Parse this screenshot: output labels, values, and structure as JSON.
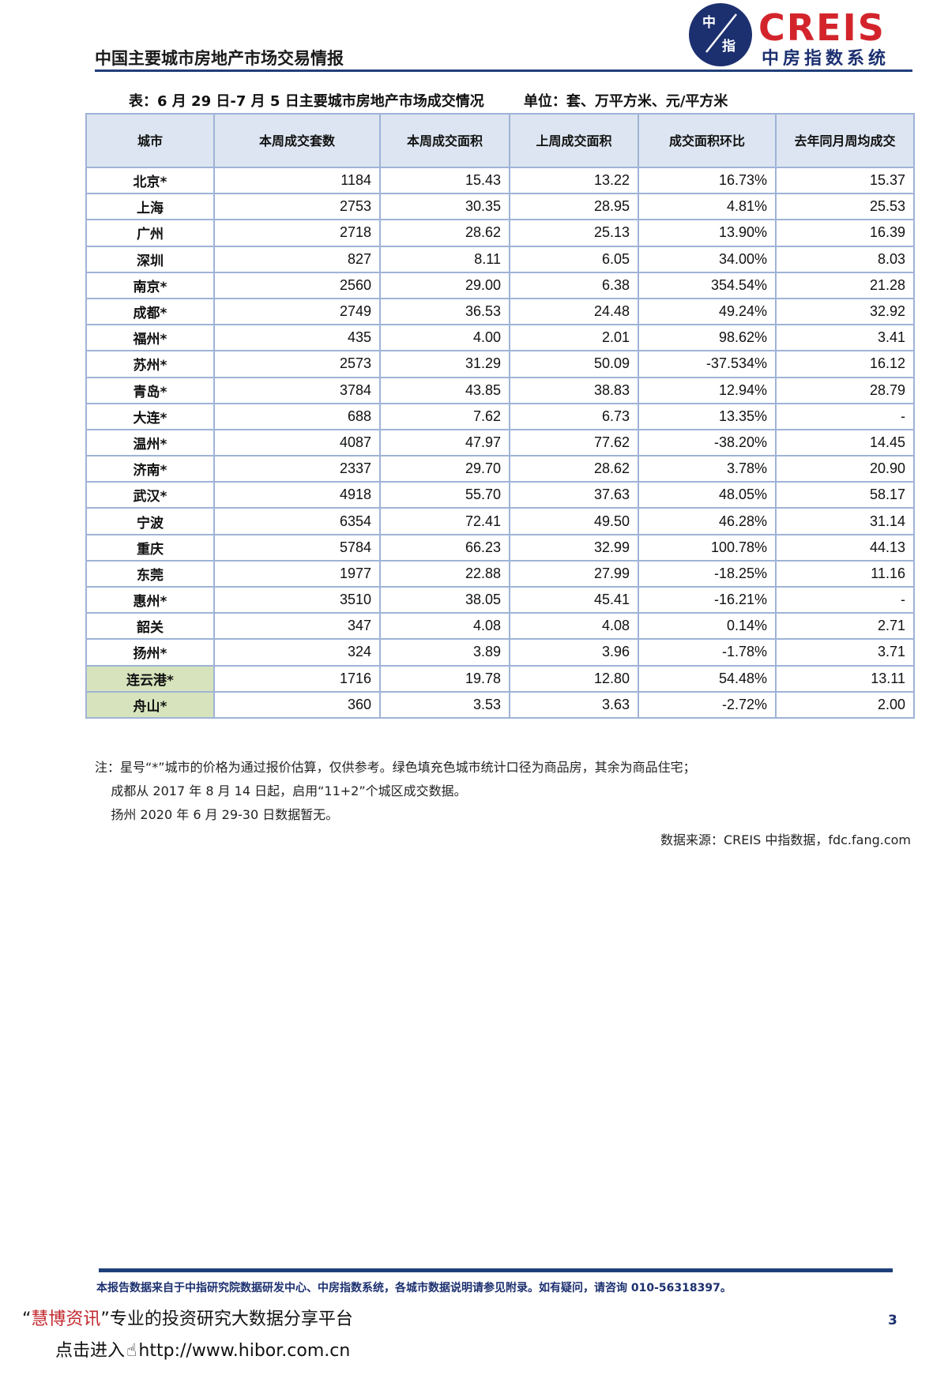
{
  "header": {
    "report_title": "中国主要城市房地产市场交易情报",
    "logo_mark_top": "中",
    "logo_mark_bottom": "指",
    "logo_word": "CREIS",
    "logo_subtitle": "中房指数系统"
  },
  "table": {
    "caption": "表：6 月 29 日-7 月 5 日主要城市房地产市场成交情况        单位：套、万平方米、元/平方米",
    "columns": [
      "城市",
      "本周成交套数",
      "本周成交面积",
      "上周成交面积",
      "成交面积环比",
      "去年同月周均成交"
    ],
    "rows": [
      {
        "city": "北京*",
        "units": "1184",
        "area": "15.43",
        "last_area": "13.22",
        "change": "16.73%",
        "last_year": "15.37",
        "green": false
      },
      {
        "city": "上海",
        "units": "2753",
        "area": "30.35",
        "last_area": "28.95",
        "change": "4.81%",
        "last_year": "25.53",
        "green": false
      },
      {
        "city": "广州",
        "units": "2718",
        "area": "28.62",
        "last_area": "25.13",
        "change": "13.90%",
        "last_year": "16.39",
        "green": false
      },
      {
        "city": "深圳",
        "units": "827",
        "area": "8.11",
        "last_area": "6.05",
        "change": "34.00%",
        "last_year": "8.03",
        "green": false
      },
      {
        "city": "南京*",
        "units": "2560",
        "area": "29.00",
        "last_area": "6.38",
        "change": "354.54%",
        "last_year": "21.28",
        "green": false
      },
      {
        "city": "成都*",
        "units": "2749",
        "area": "36.53",
        "last_area": "24.48",
        "change": "49.24%",
        "last_year": "32.92",
        "green": false
      },
      {
        "city": "福州*",
        "units": "435",
        "area": "4.00",
        "last_area": "2.01",
        "change": "98.62%",
        "last_year": "3.41",
        "green": false
      },
      {
        "city": "苏州*",
        "units": "2573",
        "area": "31.29",
        "last_area": "50.09",
        "change": "-37.534%",
        "last_year": "16.12",
        "green": false
      },
      {
        "city": "青岛*",
        "units": "3784",
        "area": "43.85",
        "last_area": "38.83",
        "change": "12.94%",
        "last_year": "28.79",
        "green": false
      },
      {
        "city": "大连*",
        "units": "688",
        "area": "7.62",
        "last_area": "6.73",
        "change": "13.35%",
        "last_year": "-",
        "green": false
      },
      {
        "city": "温州*",
        "units": "4087",
        "area": "47.97",
        "last_area": "77.62",
        "change": "-38.20%",
        "last_year": "14.45",
        "green": false
      },
      {
        "city": "济南*",
        "units": "2337",
        "area": "29.70",
        "last_area": "28.62",
        "change": "3.78%",
        "last_year": "20.90",
        "green": false
      },
      {
        "city": "武汉*",
        "units": "4918",
        "area": "55.70",
        "last_area": "37.63",
        "change": "48.05%",
        "last_year": "58.17",
        "green": false
      },
      {
        "city": "宁波",
        "units": "6354",
        "area": "72.41",
        "last_area": "49.50",
        "change": "46.28%",
        "last_year": "31.14",
        "green": false
      },
      {
        "city": "重庆",
        "units": "5784",
        "area": "66.23",
        "last_area": "32.99",
        "change": "100.78%",
        "last_year": "44.13",
        "green": false
      },
      {
        "city": "东莞",
        "units": "1977",
        "area": "22.88",
        "last_area": "27.99",
        "change": "-18.25%",
        "last_year": "11.16",
        "green": false
      },
      {
        "city": "惠州*",
        "units": "3510",
        "area": "38.05",
        "last_area": "45.41",
        "change": "-16.21%",
        "last_year": "-",
        "green": false
      },
      {
        "city": "韶关",
        "units": "347",
        "area": "4.08",
        "last_area": "4.08",
        "change": "0.14%",
        "last_year": "2.71",
        "green": false
      },
      {
        "city": "扬州*",
        "units": "324",
        "area": "3.89",
        "last_area": "3.96",
        "change": "-1.78%",
        "last_year": "3.71",
        "green": false
      },
      {
        "city": "连云港*",
        "units": "1716",
        "area": "19.78",
        "last_area": "12.80",
        "change": "54.48%",
        "last_year": "13.11",
        "green": true
      },
      {
        "city": "舟山*",
        "units": "360",
        "area": "3.53",
        "last_area": "3.63",
        "change": "-2.72%",
        "last_year": "2.00",
        "green": true
      }
    ]
  },
  "notes": [
    "注：星号“*”城市的价格为通过报价估算，仅供参考。绿色填充色城市统计口径为商品房，其余为商品住宅；",
    "    成都从 2017 年 8 月 14 日起，启用“11+2”个城区成交数据。",
    "    扬州 2020 年 6 月 29-30 日数据暂无。"
  ],
  "source": "数据来源：CREIS 中指数据，fdc.fang.com",
  "footer": {
    "disclaimer": "本报告数据来自于中指研究院数据研发中心、中房指数系统，各城市数据说明请参见附录。如有疑问，请咨询 010-56318397。",
    "page_number": "3",
    "promo_open": "“",
    "promo_brand": "慧博资讯",
    "promo_rest": "”专业的投资研究大数据分享平台",
    "link_prefix": "点击进入",
    "link_url": "http://www.hibor.com.cn"
  },
  "colors": {
    "brand_blue": "#1c3070",
    "brand_red": "#d3242c",
    "header_fill": "#dce5f1",
    "green_fill": "#d6e3bc",
    "border": "#9fb3d6"
  }
}
